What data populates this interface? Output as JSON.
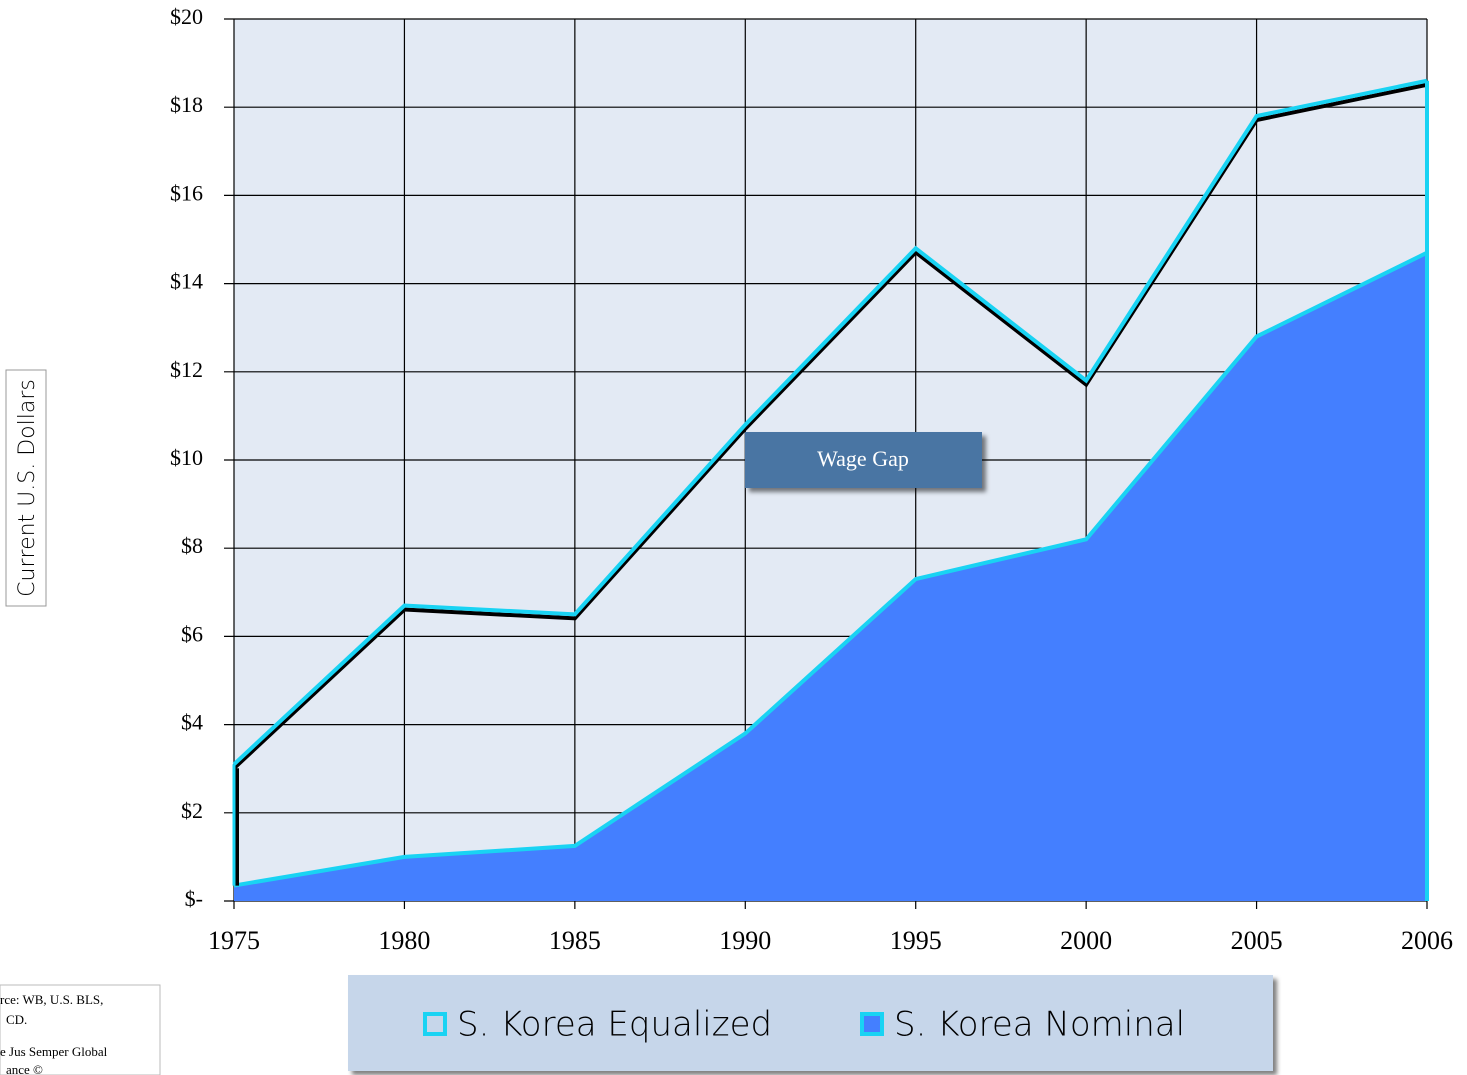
{
  "chart_data": {
    "type": "area",
    "y_label": "Current U.S. Dollars",
    "annotation": "Wage Gap",
    "source_lines": [
      "rce: WB, U.S. BLS,",
      "CD.",
      "e Jus Semper Global",
      "ance ©"
    ],
    "categories": [
      "1975",
      "1980",
      "1985",
      "1990",
      "1995",
      "2000",
      "2005",
      "2006"
    ],
    "series": [
      {
        "name": "S. Korea Equalized",
        "type": "line",
        "color": "#19d3f3",
        "values": [
          3.1,
          6.7,
          6.5,
          10.8,
          14.8,
          11.8,
          17.8,
          18.6
        ]
      },
      {
        "name": "S. Korea Nominal",
        "type": "area",
        "color": "#447fff",
        "line_color": "#19d3f3",
        "values": [
          0.35,
          1.0,
          1.25,
          3.8,
          7.3,
          8.2,
          12.8,
          14.7
        ]
      }
    ],
    "ylim": [
      0,
      20
    ],
    "yticks": [
      {
        "value": 0,
        "label": "$-"
      },
      {
        "value": 2,
        "label": "$2"
      },
      {
        "value": 4,
        "label": "$4"
      },
      {
        "value": 6,
        "label": "$6"
      },
      {
        "value": 8,
        "label": "$8"
      },
      {
        "value": 10,
        "label": "$10"
      },
      {
        "value": 12,
        "label": "$12"
      },
      {
        "value": 14,
        "label": "$14"
      },
      {
        "value": 16,
        "label": "$16"
      },
      {
        "value": 18,
        "label": "$18"
      },
      {
        "value": 20,
        "label": "$20"
      }
    ],
    "grid": true,
    "background": "#e3eaf4"
  }
}
